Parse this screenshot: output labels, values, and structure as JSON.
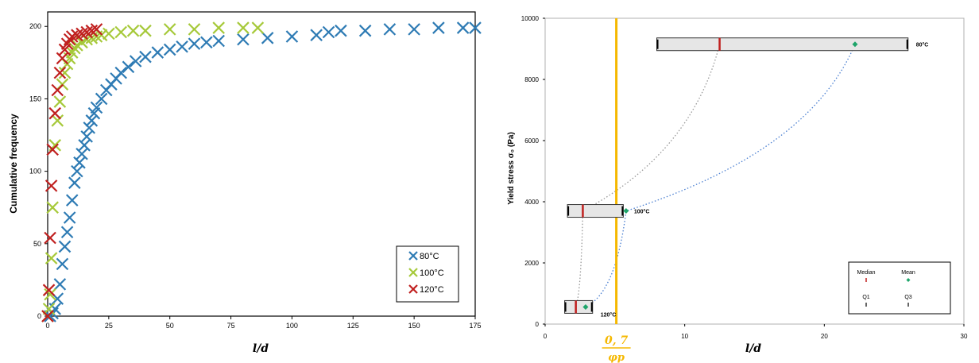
{
  "chart_data": [
    {
      "type": "scatter",
      "xlabel": "l/d",
      "ylabel": "Cumulative frequency",
      "xlim": [
        0,
        175
      ],
      "ylim": [
        0,
        210
      ],
      "xticks": [
        "0",
        "25",
        "50",
        "75",
        "100",
        "125",
        "150",
        "175"
      ],
      "yticks": [
        "0",
        "50",
        "100",
        "150",
        "200"
      ],
      "marker": "x",
      "grid": false,
      "legend_position": "bottom-right",
      "series": [
        {
          "name": "80°C",
          "color": "#2e7bb4",
          "x": [
            1,
            2,
            3,
            4,
            5,
            6,
            7,
            8,
            9,
            10,
            11,
            12,
            13,
            14,
            15,
            16,
            17,
            18,
            19,
            20,
            22,
            24,
            26,
            28,
            30,
            33,
            36,
            40,
            45,
            50,
            55,
            60,
            65,
            70,
            80,
            90,
            100,
            110,
            115,
            120,
            130,
            140,
            150,
            160,
            170,
            175
          ],
          "y": [
            0,
            2,
            5,
            12,
            22,
            36,
            48,
            58,
            68,
            80,
            92,
            100,
            106,
            112,
            118,
            124,
            130,
            135,
            140,
            144,
            150,
            156,
            160,
            164,
            168,
            172,
            176,
            179,
            182,
            184,
            186,
            188,
            189,
            190,
            191,
            192,
            193,
            194,
            196,
            197,
            197,
            198,
            198,
            199,
            199,
            199
          ]
        },
        {
          "name": "100°C",
          "color": "#a6c93a",
          "x": [
            0,
            0.5,
            1,
            1.5,
            2,
            3,
            4,
            5,
            6,
            7,
            8,
            9,
            10,
            11,
            12,
            14,
            16,
            18,
            20,
            22,
            25,
            30,
            35,
            40,
            50,
            60,
            70,
            80,
            86
          ],
          "y": [
            0,
            5,
            15,
            40,
            75,
            118,
            135,
            148,
            160,
            168,
            174,
            178,
            182,
            185,
            187,
            189,
            191,
            192,
            193,
            194,
            195,
            196,
            197,
            197,
            198,
            198,
            199,
            199,
            199
          ]
        },
        {
          "name": "120°C",
          "color": "#c0201f",
          "x": [
            0,
            0.5,
            1,
            1.5,
            2,
            3,
            4,
            5,
            6,
            7,
            8,
            9,
            10,
            12,
            14,
            16,
            18,
            20
          ],
          "y": [
            0,
            18,
            54,
            90,
            115,
            140,
            156,
            168,
            178,
            184,
            188,
            191,
            193,
            194,
            195,
            196,
            197,
            198
          ]
        }
      ]
    },
    {
      "type": "box-scatter",
      "xlabel": "l/d",
      "ylabel": "Yield stress σ₀ (Pa)",
      "xlim": [
        0,
        30
      ],
      "ylim": [
        0,
        10000
      ],
      "xticks": [
        "0",
        "10",
        "20",
        "30"
      ],
      "yticks": [
        "0",
        "2000",
        "4000",
        "6000",
        "8000",
        "10000"
      ],
      "grid": false,
      "legend_position": "bottom-right",
      "boxes": [
        {
          "label": "80°C",
          "yield_stress": 9150,
          "whisker_low": 8,
          "whisker_high": 26,
          "q1": 8,
          "q3": 26,
          "median": 12.5,
          "mean": 22.2
        },
        {
          "label": "100°C",
          "yield_stress": 3700,
          "whisker_low": 1.6,
          "whisker_high": 5.6,
          "q1": 1.6,
          "q3": 5.6,
          "median": 2.7,
          "mean": 5.8
        },
        {
          "label": "120°C",
          "yield_stress": 560,
          "whisker_low": 1.4,
          "whisker_high": 3.4,
          "q1": 1.4,
          "q3": 3.4,
          "median": 2.2,
          "mean": 2.9
        }
      ],
      "vertical_line": {
        "x": 5.1,
        "color": "#f5b800",
        "label_numerator": "0, 7",
        "label_denominator": "φp"
      },
      "curves": [
        {
          "style": "dotted",
          "color": "#999999",
          "through_boxes": "median"
        },
        {
          "style": "dotted",
          "color": "#4a7fd1",
          "through_boxes": "mean"
        }
      ],
      "legend_items": [
        {
          "label": "Median",
          "symbol": "red-bar"
        },
        {
          "label": "Mean",
          "symbol": "green-diamond"
        },
        {
          "label": "Q1",
          "symbol": "black-bar"
        },
        {
          "label": "Q3",
          "symbol": "black-bar"
        }
      ]
    }
  ]
}
